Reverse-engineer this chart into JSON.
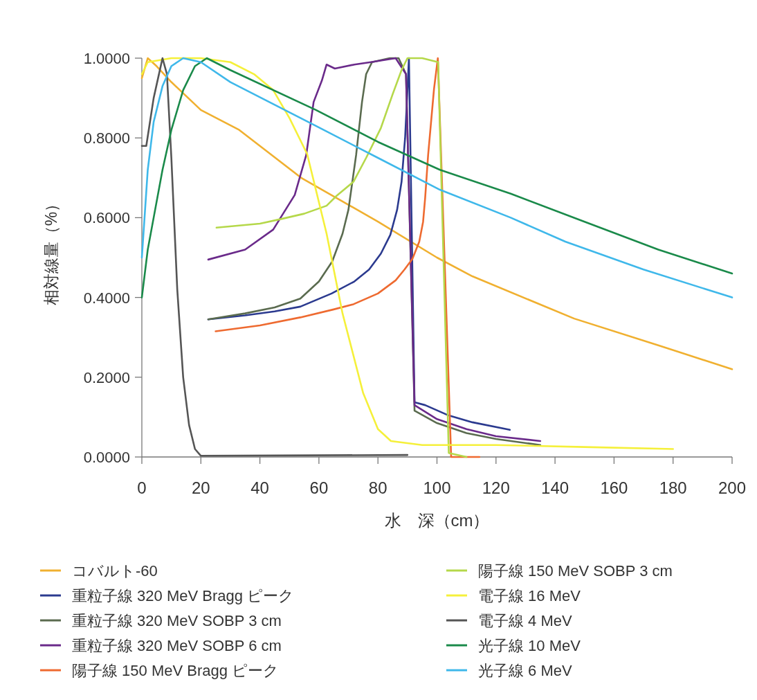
{
  "chart_data": {
    "type": "line",
    "xlabel": "水　深（cm）",
    "ylabel": "相対線量（%）",
    "xlim": [
      0,
      200
    ],
    "ylim": [
      0,
      1
    ],
    "xticks": [
      0,
      20,
      40,
      60,
      80,
      100,
      120,
      140,
      160,
      180,
      200
    ],
    "yticks": [
      {
        "value": 0,
        "label": "0.0000"
      },
      {
        "value": 0.2,
        "label": "0.2000"
      },
      {
        "value": 0.4,
        "label": "0.4000"
      },
      {
        "value": 0.6,
        "label": "0.6000"
      },
      {
        "value": 0.8,
        "label": "0.8000"
      },
      {
        "value": 1,
        "label": "1.0000"
      }
    ],
    "grid": false,
    "legend": "bottom",
    "marker": "none",
    "line_style": "solid",
    "series": [
      {
        "name": "コバルト-60",
        "color": "#f0b030",
        "x": [
          0,
          2,
          5,
          10,
          20,
          33,
          40,
          54,
          80,
          100,
          112,
          146.5,
          175,
          200
        ],
        "values": [
          0.95,
          1.0,
          0.98,
          0.94,
          0.87,
          0.82,
          0.78,
          0.7,
          0.59,
          0.5,
          0.453,
          0.347,
          0.28,
          0.22
        ]
      },
      {
        "name": "重粒子線 320 MeV Bragg ピーク",
        "color": "#2b3a8f",
        "x": [
          22.5,
          35,
          45,
          53.7,
          64.3,
          72,
          77,
          81,
          84.2,
          86.5,
          88,
          89.2,
          89.8,
          90.5,
          92.4,
          96,
          104,
          112,
          124.7
        ],
        "values": [
          0.345,
          0.355,
          0.365,
          0.377,
          0.41,
          0.44,
          0.47,
          0.51,
          0.557,
          0.62,
          0.69,
          0.8,
          0.89,
          1.0,
          0.137,
          0.13,
          0.104,
          0.087,
          0.068
        ]
      },
      {
        "name": "重粒子線 320 MeV SOBP 3 cm",
        "color": "#5a6b4f",
        "x": [
          22.5,
          35,
          45,
          53.7,
          60,
          64.5,
          68,
          70,
          72.6,
          74.6,
          76,
          78,
          84,
          87,
          89.5,
          92.4,
          100,
          110,
          120,
          135
        ],
        "values": [
          0.345,
          0.36,
          0.375,
          0.397,
          0.44,
          0.49,
          0.56,
          0.62,
          0.757,
          0.89,
          0.96,
          0.99,
          1.0,
          1.0,
          0.96,
          0.116,
          0.085,
          0.06,
          0.045,
          0.03
        ]
      },
      {
        "name": "重粒子線 320 MeV SOBP 6 cm",
        "color": "#6a2a8a",
        "x": [
          22.5,
          35,
          44.5,
          51.8,
          55.7,
          58.2,
          61,
          62.6,
          65.4,
          72,
          77.6,
          86,
          89.5,
          92.4,
          100,
          110,
          120,
          135
        ],
        "values": [
          0.495,
          0.52,
          0.57,
          0.657,
          0.757,
          0.89,
          0.944,
          0.984,
          0.974,
          0.984,
          0.99,
          1.0,
          0.96,
          0.13,
          0.095,
          0.07,
          0.052,
          0.04
        ]
      },
      {
        "name": "陽子線 150 MeV Bragg ピーク",
        "color": "#ee6a30",
        "x": [
          25,
          40,
          53.7,
          65,
          71.7,
          80,
          86,
          89,
          91.7,
          94,
          95.3,
          96,
          97,
          98,
          99,
          100.3,
          104.8,
          114.4
        ],
        "values": [
          0.315,
          0.33,
          0.35,
          0.37,
          0.383,
          0.41,
          0.443,
          0.47,
          0.497,
          0.54,
          0.59,
          0.65,
          0.757,
          0.84,
          0.923,
          1.0,
          0.0,
          0.0
        ]
      },
      {
        "name": "陽子線 150 MeV SOBP 3 cm",
        "color": "#b5d84a",
        "x": [
          25.3,
          40,
          47.4,
          55,
          62.6,
          66,
          71.7,
          76,
          81,
          85,
          88,
          90,
          95,
          100.4,
          104,
          110
        ],
        "values": [
          0.575,
          0.585,
          0.597,
          0.61,
          0.63,
          0.655,
          0.69,
          0.75,
          0.825,
          0.91,
          0.97,
          1.0,
          1.0,
          0.99,
          0.01,
          0.0
        ]
      },
      {
        "name": "電子線 16 MeV",
        "color": "#f5f03a",
        "x": [
          0,
          2,
          10,
          20,
          30,
          38,
          44.5,
          50,
          56,
          62.6,
          68,
          75,
          80,
          84.4,
          95,
          120,
          150,
          180
        ],
        "values": [
          0.96,
          0.99,
          1.0,
          1.0,
          0.99,
          0.96,
          0.92,
          0.85,
          0.76,
          0.56,
          0.36,
          0.16,
          0.07,
          0.04,
          0.03,
          0.03,
          0.025,
          0.02
        ]
      },
      {
        "name": "電子線 4 MeV",
        "color": "#555555",
        "x": [
          0,
          1.5,
          4,
          7,
          8.5,
          10,
          12,
          14,
          16,
          18,
          20,
          90
        ],
        "values": [
          0.78,
          0.78,
          0.9,
          1.0,
          0.96,
          0.75,
          0.42,
          0.2,
          0.08,
          0.02,
          0.003,
          0.005
        ]
      },
      {
        "name": "光子線 10 MeV",
        "color": "#1a8a4a",
        "x": [
          0,
          2,
          4.5,
          7,
          10,
          14,
          18,
          22,
          30,
          59,
          80,
          101,
          125,
          150,
          175,
          200
        ],
        "values": [
          0.4,
          0.52,
          0.62,
          0.72,
          0.82,
          0.92,
          0.98,
          1.0,
          0.97,
          0.87,
          0.79,
          0.72,
          0.66,
          0.59,
          0.52,
          0.46
        ]
      },
      {
        "name": "光子線 6 MeV",
        "color": "#3fb8ea",
        "x": [
          0,
          2,
          4,
          7,
          10,
          14,
          20,
          30,
          59,
          80,
          101,
          125,
          143.5,
          170,
          200
        ],
        "values": [
          0.5,
          0.72,
          0.84,
          0.93,
          0.98,
          1.0,
          0.99,
          0.94,
          0.83,
          0.75,
          0.67,
          0.6,
          0.54,
          0.47,
          0.4
        ]
      }
    ]
  }
}
